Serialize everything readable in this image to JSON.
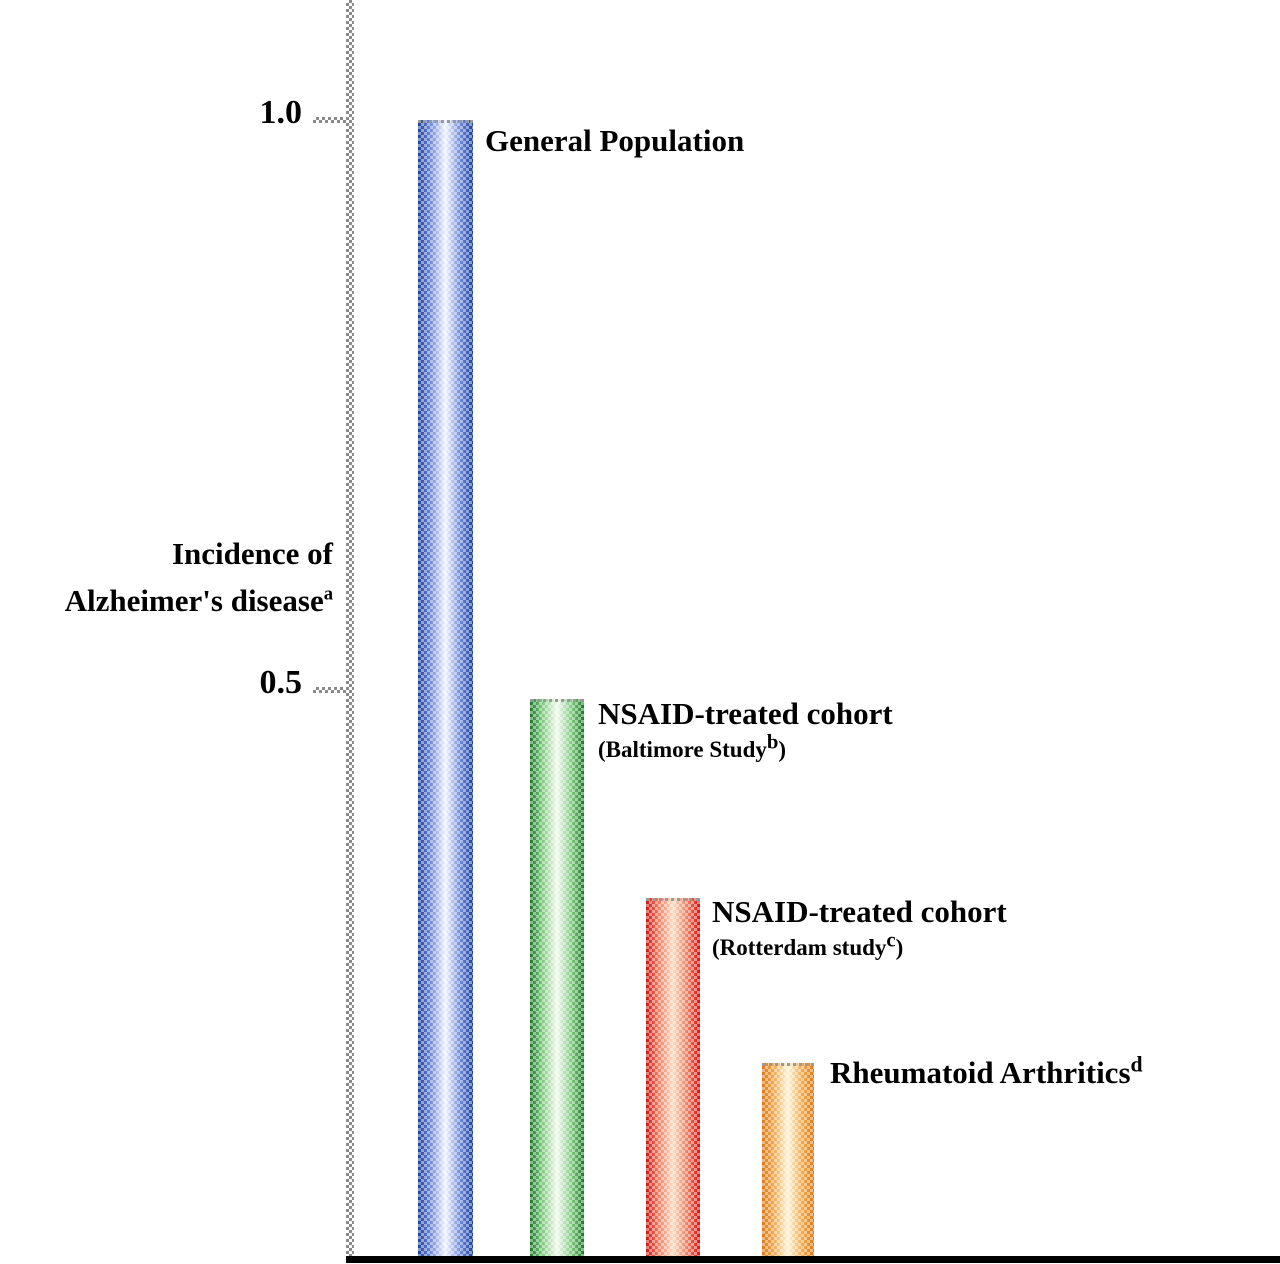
{
  "chart_data": {
    "type": "bar",
    "title": "",
    "ylabel": {
      "line1": "Incidence of",
      "line2": "Alzheimer's disease",
      "sup": "a"
    },
    "yticks": [
      {
        "value": 1.0,
        "label": "1.0"
      },
      {
        "value": 0.5,
        "label": "0.5"
      }
    ],
    "ylim": [
      0,
      1.15
    ],
    "grid": false,
    "legend_position": "none",
    "bars": [
      {
        "category": "General Population",
        "category_sup": "",
        "value": 1.0,
        "colors": {
          "edge": "#1c3f9b",
          "mid": "#6b86d6",
          "center": "#f2f4ff"
        }
      },
      {
        "category": "NSAID-treated cohort",
        "category_sup": "",
        "sub": {
          "pre": "(Baltimore Study",
          "sup": "b",
          "post": ")"
        },
        "value": 0.49,
        "colors": {
          "edge": "#1a7a26",
          "mid": "#7cc87c",
          "center": "#f2fbee"
        }
      },
      {
        "category": "NSAID-treated cohort",
        "category_sup": "",
        "sub": {
          "pre": "(Rotterdam study",
          "sup": "c",
          "post": ")"
        },
        "value": 0.315,
        "colors": {
          "edge": "#d01212",
          "mid": "#ec7a5e",
          "center": "#fbdcc0"
        }
      },
      {
        "category": "Rheumatoid Arthritics",
        "category_sup": "d",
        "value": 0.17,
        "colors": {
          "edge": "#e07818",
          "mid": "#f2a84a",
          "center": "#fff4d8"
        }
      }
    ]
  }
}
